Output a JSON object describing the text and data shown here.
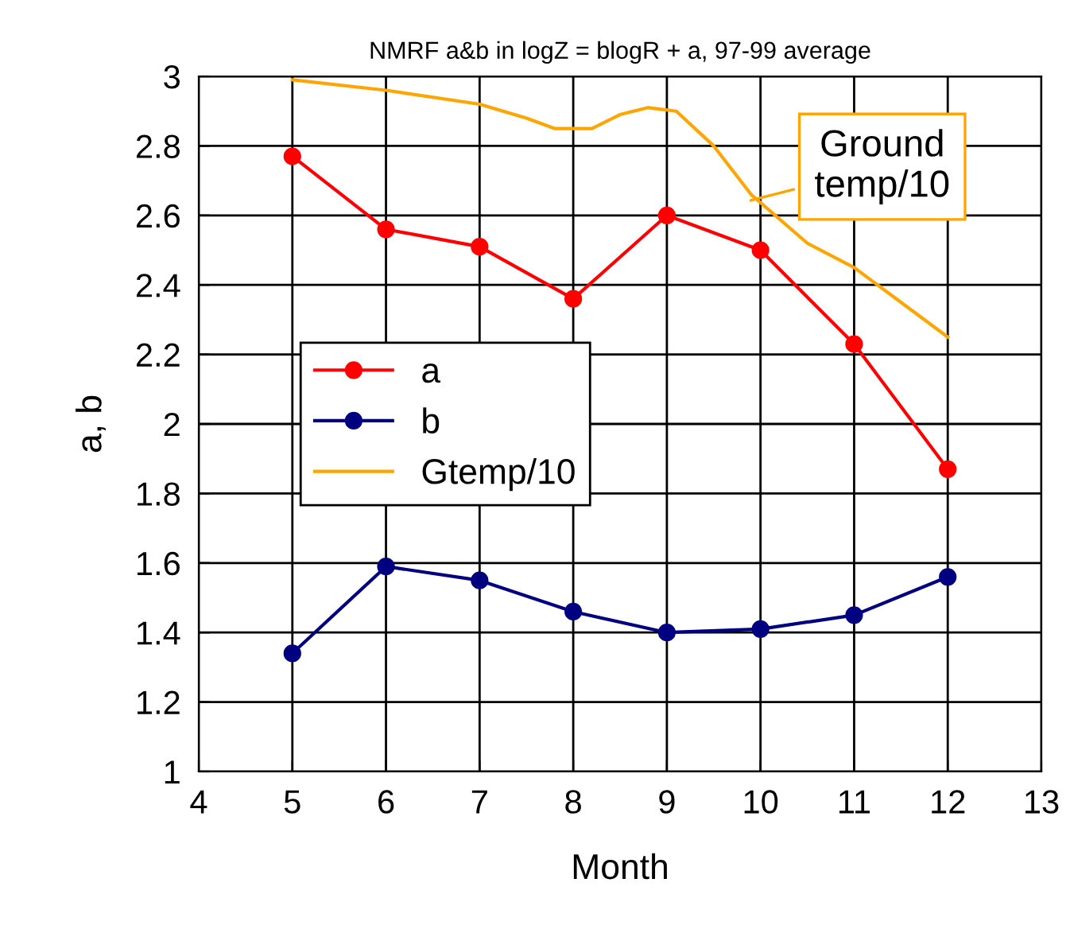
{
  "chart_data": {
    "type": "line",
    "title": "NMRF a&b in logZ = blogR + a, 97-99 average",
    "xlabel": "Month",
    "ylabel": "a, b",
    "series": [
      {
        "name": "a",
        "color": "#ff0000",
        "marker": "circle",
        "x": [
          5,
          6,
          7,
          8,
          9,
          10,
          11,
          12
        ],
        "values": [
          2.77,
          2.56,
          2.51,
          2.36,
          2.6,
          2.5,
          2.23,
          1.87
        ]
      },
      {
        "name": "b",
        "color": "#000080",
        "marker": "circle",
        "x": [
          5,
          6,
          7,
          8,
          9,
          10,
          11,
          12
        ],
        "values": [
          1.34,
          1.59,
          1.55,
          1.46,
          1.4,
          1.41,
          1.45,
          1.56
        ]
      },
      {
        "name": "Gtemp/10",
        "color": "#ffa500",
        "marker": "none",
        "x": [
          5,
          6,
          7,
          7.5,
          7.8,
          8.2,
          8.5,
          8.8,
          9.1,
          9.5,
          9.9,
          10.5,
          11,
          12
        ],
        "values": [
          2.99,
          2.96,
          2.92,
          2.88,
          2.85,
          2.85,
          2.89,
          2.91,
          2.9,
          2.8,
          2.66,
          2.52,
          2.45,
          2.25
        ]
      }
    ],
    "annotations": [
      {
        "text": "Ground\ntemp/10",
        "x": 9.85,
        "y": 2.64
      }
    ],
    "xlim": [
      4,
      13
    ],
    "xticks": [
      4,
      5,
      6,
      7,
      8,
      9,
      10,
      11,
      12,
      13
    ],
    "ylim": [
      1,
      3
    ],
    "yticks": [
      1,
      1.2,
      1.4,
      1.6,
      1.8,
      2,
      2.2,
      2.4,
      2.6,
      2.8,
      3
    ],
    "grid": true,
    "legend": "left",
    "line_style": "solid"
  }
}
